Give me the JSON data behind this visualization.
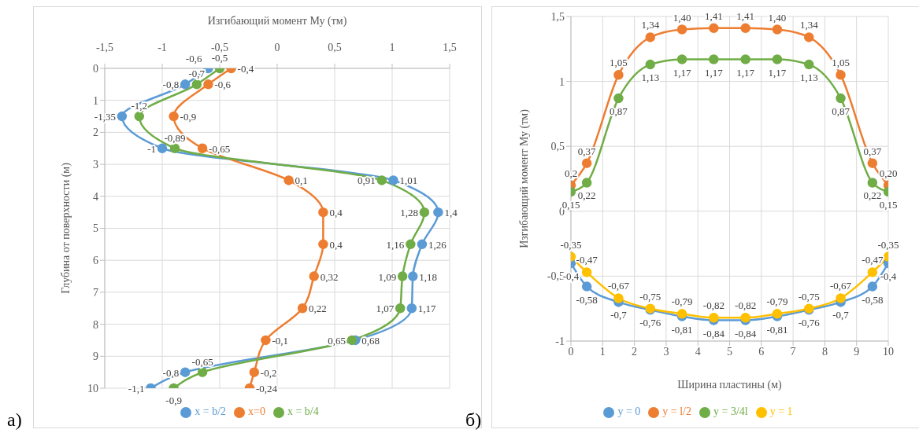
{
  "chart_data": [
    {
      "type": "line",
      "orientation": "horizontal",
      "xlabel": "Изгибающий момент  Му (тм)",
      "ylabel": "Глубина  от поверхности (м)",
      "annotations": [
        "а)"
      ],
      "x": [
        0,
        0.5,
        1.5,
        2.5,
        3.5,
        4.5,
        5.5,
        6.5,
        7.5,
        8.5,
        9.5,
        10
      ],
      "series": [
        {
          "name": "x = b/2",
          "color": "#5b9bd5",
          "values": [
            -0.6,
            -0.8,
            -1.35,
            -1,
            1.01,
            1.4,
            1.26,
            1.18,
            1.17,
            0.68,
            -0.8,
            -1.1
          ],
          "value_labels": [
            "-0,6",
            "-0,8",
            "-1,35",
            "-1",
            "1,01",
            "1,4",
            "1,26",
            "1,18",
            "1,17",
            "0,68",
            "-0,8",
            "-1,1"
          ]
        },
        {
          "name": "x=0",
          "color": "#ed7d31",
          "values": [
            -0.4,
            -0.6,
            -0.9,
            -0.65,
            0.1,
            0.4,
            0.4,
            0.32,
            0.22,
            -0.1,
            -0.2,
            -0.24
          ],
          "value_labels": [
            "-0,4",
            "-0,6",
            "-0,9",
            "-0,65",
            "0,1",
            "0,4",
            "0,4",
            "0,32",
            "0,22",
            "-0,1",
            "-0,2",
            "-0,24"
          ]
        },
        {
          "name": "x = b/4",
          "color": "#70ad47",
          "values": [
            -0.5,
            -0.7,
            -1.2,
            -0.89,
            0.91,
            1.28,
            1.16,
            1.09,
            1.07,
            0.65,
            -0.65,
            -0.9
          ],
          "value_labels": [
            "-0,5",
            "-0,7",
            "-1,2",
            "-0,89",
            "0,91",
            "1,28",
            "1,16",
            "1,09",
            "1,07",
            "0,65",
            "-0,65",
            "-0,9"
          ]
        }
      ],
      "xlim": [
        -1.5,
        1.5
      ],
      "xticks": [
        {
          "value": -1.5,
          "label": "-1,5"
        },
        -1,
        {
          "value": -0.5,
          "label": "-0,5"
        },
        0,
        {
          "value": 0.5,
          "label": "0,5"
        },
        1,
        {
          "value": 1.5,
          "label": "1,5"
        }
      ],
      "ylim": [
        10,
        0
      ],
      "yticks": [
        0,
        1,
        2,
        3,
        4,
        5,
        6,
        7,
        8,
        9,
        10
      ],
      "grid": true,
      "legend": "bottom",
      "marker": "circle",
      "line_style": "solid"
    },
    {
      "type": "line",
      "xlabel": "Ширина пластины (м)",
      "ylabel": "Изгибающий момент Му (тм)",
      "annotations": [
        "б)"
      ],
      "x": [
        0,
        0.5,
        1.5,
        2.5,
        3.5,
        4.5,
        5.5,
        6.5,
        7.5,
        8.5,
        9.5,
        10
      ],
      "series": [
        {
          "name": "y = 0",
          "color": "#5b9bd5",
          "values": [
            -0.4,
            -0.58,
            -0.7,
            -0.76,
            -0.81,
            -0.84,
            -0.84,
            -0.81,
            -0.76,
            -0.7,
            -0.58,
            -0.4
          ],
          "value_labels": [
            "-0,4",
            "-0,58",
            "-0,7",
            "-0,76",
            "-0,81",
            "-0,84",
            "-0,84",
            "-0,81",
            "-0,76",
            "-0,7",
            "-0,58",
            "-0,4"
          ]
        },
        {
          "name": "y = l/2",
          "color": "#ed7d31",
          "values": [
            0.2,
            0.37,
            1.05,
            1.34,
            1.4,
            1.41,
            1.41,
            1.4,
            1.34,
            1.05,
            0.37,
            0.2
          ],
          "value_labels": [
            "0,2",
            "0,37",
            "1,05",
            "1,34",
            "1,40",
            "1,41",
            "1,41",
            "1,40",
            "1,34",
            "1,05",
            "0,37",
            "0,20"
          ]
        },
        {
          "name": "y = 3/4l",
          "color": "#70ad47",
          "values": [
            0.15,
            0.22,
            0.87,
            1.13,
            1.17,
            1.17,
            1.17,
            1.17,
            1.13,
            0.87,
            0.22,
            0.15
          ],
          "value_labels": [
            "0,15",
            "0,22",
            "0,87",
            "1,13",
            "1,17",
            "1,17",
            "1,17",
            "1,17",
            "1,13",
            "0,87",
            "0,22",
            "0,15"
          ]
        },
        {
          "name": "y = 1",
          "color": "#ffc000",
          "values": [
            -0.35,
            -0.47,
            -0.67,
            -0.75,
            -0.79,
            -0.82,
            -0.82,
            -0.79,
            -0.75,
            -0.67,
            -0.47,
            -0.35
          ],
          "value_labels": [
            "-0,35",
            "-0,47",
            "-0,67",
            "-0,75",
            "-0,79",
            "-0,82",
            "-0,82",
            "-0,79",
            "-0,75",
            "-0,67",
            "-0,47",
            "-0,35"
          ]
        }
      ],
      "xlim": [
        0,
        10
      ],
      "xticks": [
        0,
        1,
        2,
        3,
        4,
        5,
        6,
        7,
        8,
        9,
        10
      ],
      "ylim": [
        -1,
        1.5
      ],
      "yticks": [
        -1,
        {
          "value": -0.5,
          "label": "-0,5"
        },
        0,
        {
          "value": 0.5,
          "label": "0,5"
        },
        1,
        {
          "value": 1.5,
          "label": "1,5"
        }
      ],
      "grid": true,
      "legend": "bottom",
      "marker": "circle",
      "line_style": "solid"
    }
  ]
}
